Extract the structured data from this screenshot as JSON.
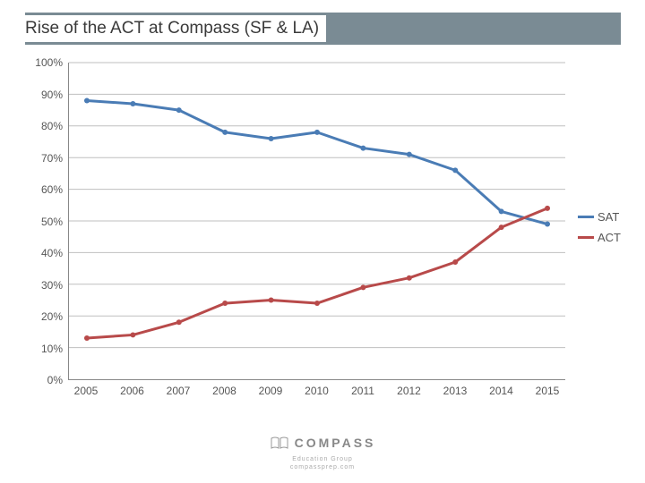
{
  "title": "Rise of the ACT at Compass (SF  & LA)",
  "chart": {
    "type": "line",
    "background_color": "#ffffff",
    "grid_color": "#bfbfbf",
    "axis_color": "#888888",
    "ylim": [
      0,
      100
    ],
    "ytick_step": 10,
    "yticks": [
      "0%",
      "10%",
      "20%",
      "30%",
      "40%",
      "50%",
      "60%",
      "70%",
      "80%",
      "90%",
      "100%"
    ],
    "xticks": [
      "2005",
      "2006",
      "2007",
      "2008",
      "2009",
      "2010",
      "2011",
      "2012",
      "2013",
      "2014",
      "2015"
    ],
    "label_fontsize": 12,
    "line_width": 3,
    "series": [
      {
        "name": "SAT",
        "color": "#4a7cb5",
        "values": [
          88,
          87,
          85,
          78,
          76,
          78,
          73,
          71,
          66,
          53,
          49
        ]
      },
      {
        "name": "ACT",
        "color": "#b84a4a",
        "values": [
          13,
          14,
          18,
          24,
          25,
          24,
          29,
          32,
          37,
          48,
          54
        ]
      }
    ],
    "legend": {
      "position": "right",
      "items": [
        "SAT",
        "ACT"
      ]
    }
  },
  "footer": {
    "brand": "COMPASS",
    "subtitle1": "Education Group",
    "subtitle2": "compassprep.com"
  },
  "title_bar_color": "#7a8b94"
}
